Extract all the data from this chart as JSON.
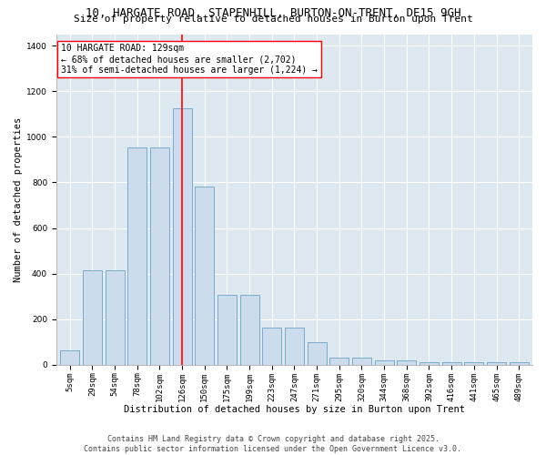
{
  "title_line1": "10, HARGATE ROAD, STAPENHILL, BURTON-ON-TRENT, DE15 9GH",
  "title_line2": "Size of property relative to detached houses in Burton upon Trent",
  "xlabel": "Distribution of detached houses by size in Burton upon Trent",
  "ylabel": "Number of detached properties",
  "categories": [
    "5sqm",
    "29sqm",
    "54sqm",
    "78sqm",
    "102sqm",
    "126sqm",
    "150sqm",
    "175sqm",
    "199sqm",
    "223sqm",
    "247sqm",
    "271sqm",
    "295sqm",
    "320sqm",
    "344sqm",
    "368sqm",
    "392sqm",
    "416sqm",
    "441sqm",
    "465sqm",
    "489sqm"
  ],
  "bar_heights": [
    65,
    415,
    415,
    955,
    955,
    1125,
    780,
    305,
    305,
    165,
    165,
    100,
    30,
    30,
    20,
    20,
    12,
    12,
    10,
    10,
    10
  ],
  "bar_color": "#ccdcec",
  "bar_edge_color": "#7aabcc",
  "vline_x_index": 5,
  "vline_color": "red",
  "annotation_text": "10 HARGATE ROAD: 129sqm\n← 68% of detached houses are smaller (2,702)\n31% of semi-detached houses are larger (1,224) →",
  "annotation_box_color": "white",
  "annotation_box_edge": "red",
  "ylim": [
    0,
    1450
  ],
  "yticks": [
    0,
    200,
    400,
    600,
    800,
    1000,
    1200,
    1400
  ],
  "background_color": "#dde8f0",
  "footer_line1": "Contains HM Land Registry data © Crown copyright and database right 2025.",
  "footer_line2": "Contains public sector information licensed under the Open Government Licence v3.0.",
  "title_fontsize": 9,
  "subtitle_fontsize": 8,
  "axis_label_fontsize": 7.5,
  "tick_fontsize": 6.5,
  "annotation_fontsize": 7,
  "footer_fontsize": 6
}
